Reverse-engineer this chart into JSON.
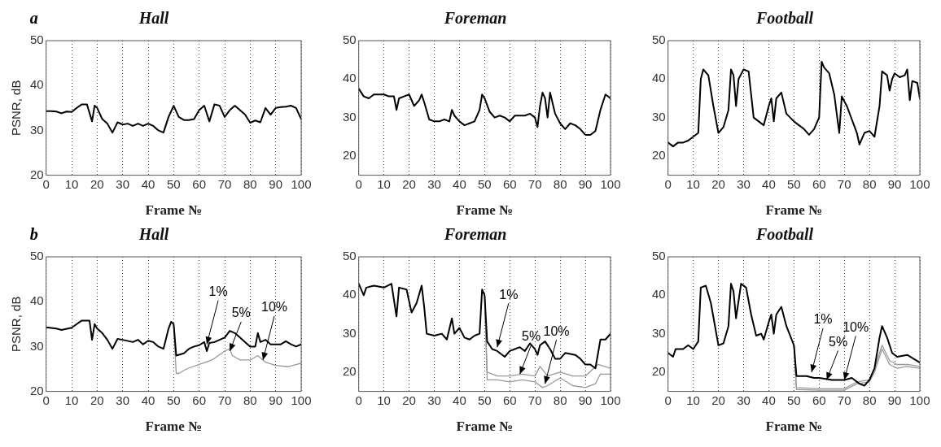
{
  "chart_data": [
    {
      "type": "line",
      "title": "Hall",
      "ylabel": "PSNR, dB",
      "xlabel": "Frame №",
      "annotations": [
        "a"
      ],
      "xlim": [
        0,
        100
      ],
      "xticks": [
        0,
        10,
        20,
        30,
        40,
        50,
        60,
        70,
        80,
        90,
        100
      ],
      "ylim": [
        20,
        50
      ],
      "yticks": [
        20,
        30,
        40,
        50
      ],
      "grid": "x",
      "marker": "none",
      "line_style": "solid",
      "series": [
        {
          "color": "#000000",
          "x": [
            0,
            2,
            4,
            6,
            8,
            10,
            12,
            14,
            16,
            18,
            19,
            20,
            22,
            24,
            26,
            28,
            30,
            32,
            34,
            36,
            38,
            40,
            42,
            44,
            46,
            48,
            50,
            52,
            54,
            56,
            58,
            60,
            62,
            64,
            66,
            68,
            70,
            72,
            74,
            76,
            78,
            80,
            82,
            84,
            86,
            88,
            90,
            92,
            94,
            96,
            98,
            100
          ],
          "values": [
            34.3,
            34.3,
            34.2,
            33.8,
            34.2,
            34.1,
            35,
            35.8,
            35.8,
            32,
            35.5,
            35,
            32.5,
            31.5,
            29.5,
            31.8,
            31.3,
            31.5,
            31,
            31.5,
            31,
            31.5,
            31,
            30,
            29.5,
            33,
            35.5,
            33,
            32.3,
            32.3,
            32.5,
            34.5,
            35.5,
            32,
            35.8,
            35.5,
            33,
            34.5,
            35.5,
            34.5,
            33.5,
            31.7,
            32.2,
            31.8,
            35,
            33.5,
            35,
            35.2,
            35.3,
            35.5,
            35,
            32.5
          ]
        }
      ]
    },
    {
      "type": "line",
      "title": "Foreman",
      "xlabel": "Frame №",
      "xlim": [
        0,
        100
      ],
      "xticks": [
        0,
        10,
        20,
        30,
        40,
        50,
        60,
        70,
        80,
        90,
        100
      ],
      "ylim": [
        15,
        50
      ],
      "yticks": [
        20,
        30,
        40,
        50
      ],
      "grid": "x",
      "marker": "none",
      "line_style": "solid",
      "series": [
        {
          "color": "#000000",
          "x": [
            0,
            2,
            4,
            6,
            8,
            10,
            12,
            14,
            15,
            16,
            18,
            20,
            22,
            24,
            25,
            26,
            28,
            30,
            32,
            34,
            36,
            37,
            38,
            40,
            42,
            44,
            46,
            48,
            49,
            50,
            52,
            54,
            56,
            58,
            60,
            62,
            64,
            66,
            68,
            70,
            71,
            72,
            73,
            74,
            75,
            76,
            78,
            80,
            82,
            84,
            86,
            88,
            90,
            92,
            94,
            96,
            98,
            100
          ],
          "values": [
            37.5,
            35.5,
            35,
            36,
            36,
            36,
            35.5,
            35.5,
            32,
            35,
            35.5,
            36,
            33,
            34.5,
            36,
            34,
            29.5,
            29,
            29,
            29.5,
            29,
            32,
            30.5,
            29,
            28,
            28.5,
            29,
            32,
            36,
            35,
            31.5,
            30,
            30.5,
            30,
            29,
            30.5,
            30.5,
            30.5,
            31,
            30,
            27.5,
            33,
            36.5,
            35,
            30,
            36.5,
            31,
            28.5,
            27,
            28.5,
            28,
            27,
            25.5,
            25.5,
            26.5,
            32,
            36,
            35
          ]
        }
      ]
    },
    {
      "type": "line",
      "title": "Football",
      "xlabel": "Frame №",
      "xlim": [
        0,
        100
      ],
      "xticks": [
        0,
        10,
        20,
        30,
        40,
        50,
        60,
        70,
        80,
        90,
        100
      ],
      "ylim": [
        15,
        50
      ],
      "yticks": [
        20,
        30,
        40,
        50
      ],
      "grid": "x",
      "marker": "none",
      "line_style": "solid",
      "series": [
        {
          "color": "#000000",
          "x": [
            0,
            2,
            4,
            6,
            8,
            10,
            12,
            13,
            14,
            16,
            18,
            20,
            22,
            24,
            25,
            26,
            27,
            28,
            30,
            32,
            34,
            36,
            38,
            40,
            41,
            42,
            43,
            45,
            47,
            50,
            52,
            54,
            56,
            58,
            60,
            61,
            62,
            64,
            66,
            68,
            69,
            71,
            73,
            75,
            76,
            78,
            80,
            82,
            84,
            85,
            87,
            88,
            89,
            90,
            92,
            94,
            95,
            96,
            97,
            99,
            100
          ],
          "values": [
            23.5,
            22.5,
            23.5,
            23.5,
            24,
            25,
            26,
            40,
            42.5,
            41,
            33,
            26,
            27.5,
            32,
            42.5,
            41,
            33,
            40,
            42.5,
            42,
            30,
            29,
            28,
            33,
            35,
            29,
            35,
            36.5,
            31,
            29,
            28,
            27,
            25.5,
            27,
            30,
            44.5,
            43,
            41.5,
            36,
            26,
            35.5,
            33,
            29.5,
            26,
            23,
            26,
            26.5,
            25,
            33,
            42,
            41,
            37,
            40,
            41.5,
            40.5,
            41,
            42.5,
            34.5,
            39.5,
            39,
            35
          ]
        }
      ]
    },
    {
      "type": "line",
      "title": "Hall",
      "ylabel": "PSNR, dB",
      "xlabel": "Frame №",
      "annotations": [
        "b",
        {
          "text": "1%",
          "x": 63,
          "y": 30.5
        },
        {
          "text": "5%",
          "x": 72,
          "y": 29
        },
        {
          "text": "10%",
          "x": 85,
          "y": 27
        }
      ],
      "xlim": [
        0,
        100
      ],
      "xticks": [
        0,
        10,
        20,
        30,
        40,
        50,
        60,
        70,
        80,
        90,
        100
      ],
      "ylim": [
        20,
        50
      ],
      "yticks": [
        20,
        30,
        40,
        50
      ],
      "grid": "x",
      "marker": "none",
      "line_style": "solid",
      "series": [
        {
          "color": "#000000",
          "x": [
            0,
            4,
            6,
            10,
            12,
            14,
            17,
            18,
            19,
            20,
            22,
            24,
            26,
            28,
            30,
            34,
            36,
            38,
            40,
            42,
            44,
            46,
            48,
            49,
            50,
            51,
            54,
            56,
            58,
            60,
            62,
            63,
            64,
            66,
            68,
            70,
            72,
            74,
            76,
            78,
            80,
            82,
            83,
            84,
            86,
            88,
            90,
            92,
            94,
            96,
            98,
            100
          ],
          "values": [
            34.3,
            34,
            33.7,
            34.2,
            35,
            35.8,
            35.8,
            31.5,
            35,
            34,
            33,
            31.5,
            29.5,
            31.7,
            31.5,
            31,
            31.5,
            30.5,
            31.3,
            31,
            30,
            29.5,
            34,
            35.5,
            35,
            28,
            28.5,
            29.5,
            30,
            30.3,
            31,
            29,
            30.8,
            31,
            31.5,
            32,
            33.5,
            33,
            32,
            31,
            30,
            30,
            33,
            31,
            31.5,
            30.5,
            30.5,
            30.5,
            31.2,
            30.5,
            30,
            30.5
          ]
        },
        {
          "color": "#999999",
          "x": [
            50,
            51,
            52,
            55,
            60,
            65,
            70,
            72,
            73,
            76,
            80,
            83,
            86,
            90,
            95,
            100
          ],
          "values": [
            35,
            24,
            24,
            25,
            26,
            27,
            29,
            29.5,
            28,
            27,
            27,
            28,
            26.5,
            25.8,
            25.5,
            26.3
          ]
        }
      ]
    },
    {
      "type": "line",
      "title": "Foreman",
      "xlabel": "Frame №",
      "annotations": [
        {
          "text": "1%",
          "x": 55,
          "y": 26.5
        },
        {
          "text": "5%",
          "x": 64,
          "y": 19.5
        },
        {
          "text": "10%",
          "x": 74,
          "y": 17
        }
      ],
      "xlim": [
        0,
        100
      ],
      "xticks": [
        0,
        10,
        20,
        30,
        40,
        50,
        60,
        70,
        80,
        90,
        100
      ],
      "ylim": [
        15,
        50
      ],
      "yticks": [
        20,
        30,
        40,
        50
      ],
      "grid": "x",
      "marker": "none",
      "line_style": "solid",
      "series": [
        {
          "color": "#000000",
          "x": [
            0,
            2,
            3,
            6,
            10,
            13,
            15,
            16,
            19,
            21,
            23,
            25,
            26,
            27,
            30,
            33,
            35,
            37,
            38,
            40,
            42,
            44,
            46,
            48,
            49,
            50,
            51,
            53,
            55,
            58,
            60,
            62,
            64,
            66,
            68,
            70,
            71,
            72,
            74,
            76,
            78,
            80,
            82,
            86,
            88,
            90,
            92,
            94,
            96,
            98,
            100
          ],
          "values": [
            43,
            40,
            42,
            42.5,
            42,
            43,
            34.5,
            42,
            41.5,
            35.5,
            38,
            42.5,
            37,
            30,
            29.5,
            30,
            28.5,
            34,
            30,
            31.5,
            29,
            28.5,
            29.5,
            30,
            41.5,
            40,
            28,
            26,
            25.5,
            24,
            25.5,
            26,
            26.5,
            25.5,
            27.5,
            26,
            24.5,
            27,
            28,
            26,
            23.5,
            23.5,
            25,
            24.5,
            23.5,
            22,
            22,
            21,
            28.5,
            28.5,
            30
          ]
        },
        {
          "color": "#999999",
          "x": [
            50,
            51,
            55,
            60,
            65,
            70,
            72,
            75,
            80,
            85,
            90,
            95,
            100
          ],
          "values": [
            40,
            20,
            19,
            19,
            19.5,
            19,
            21.5,
            19,
            20,
            19,
            19,
            22,
            21
          ]
        },
        {
          "color": "#999999",
          "x": [
            50,
            51,
            55,
            60,
            65,
            70,
            73,
            75,
            80,
            85,
            90,
            94,
            96,
            100
          ],
          "values": [
            40,
            18,
            18,
            17.5,
            18,
            17.5,
            16,
            16.5,
            18.5,
            16.5,
            16,
            17,
            19.5,
            19.5
          ]
        }
      ]
    },
    {
      "type": "line",
      "title": "Football",
      "xlabel": "Frame №",
      "annotations": [
        {
          "text": "1%",
          "x": 57,
          "y": 20
        },
        {
          "text": "5%",
          "x": 63,
          "y": 18
        },
        {
          "text": "10%",
          "x": 70,
          "y": 18
        }
      ],
      "xlim": [
        0,
        100
      ],
      "xticks": [
        0,
        10,
        20,
        30,
        40,
        50,
        60,
        70,
        80,
        90,
        100
      ],
      "ylim": [
        15,
        50
      ],
      "yticks": [
        20,
        30,
        40,
        50
      ],
      "grid": "x",
      "marker": "none",
      "line_style": "solid",
      "series": [
        {
          "color": "#000000",
          "x": [
            0,
            2,
            3,
            6,
            8,
            10,
            12,
            13,
            15,
            17,
            20,
            22,
            24,
            25,
            26,
            27,
            29,
            31,
            33,
            35,
            37,
            38,
            40,
            41,
            42,
            43,
            45,
            47,
            50,
            51,
            55,
            58,
            60,
            65,
            70,
            73,
            76,
            78,
            80,
            82,
            84,
            85,
            87,
            89,
            91,
            95,
            100
          ],
          "values": [
            25,
            24,
            26,
            26,
            27,
            26,
            28,
            42,
            42.5,
            38,
            27,
            27.5,
            32,
            43,
            41,
            34,
            43,
            42,
            35,
            29.5,
            30,
            28.5,
            33,
            35,
            30,
            35,
            37,
            32,
            27,
            19,
            19,
            18.5,
            18.5,
            18,
            18,
            18.5,
            17,
            16.5,
            18,
            21,
            29,
            32,
            29,
            25,
            24,
            24.5,
            22.5
          ]
        },
        {
          "color": "#999999",
          "x": [
            50,
            51,
            60,
            70,
            75,
            80,
            82,
            85,
            88,
            91,
            95,
            100
          ],
          "values": [
            27,
            16,
            15.7,
            15.7,
            17.5,
            18,
            21,
            27,
            23,
            22,
            22,
            21.5
          ]
        },
        {
          "color": "#999999",
          "x": [
            50,
            51,
            60,
            70,
            75,
            80,
            82,
            85,
            88,
            91,
            95,
            100
          ],
          "values": [
            27,
            15.5,
            15.3,
            15.3,
            17,
            17.5,
            20,
            26,
            22,
            21,
            21.5,
            21
          ]
        }
      ]
    }
  ]
}
